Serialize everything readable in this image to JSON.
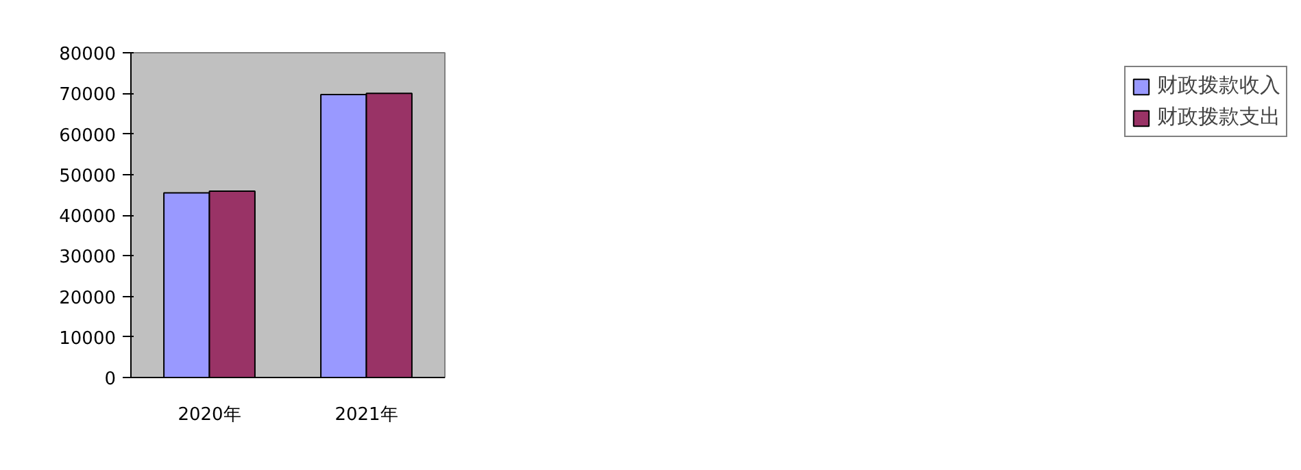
{
  "chart_data": {
    "type": "bar",
    "categories": [
      "2020年",
      "2021年"
    ],
    "series": [
      {
        "name": "财政拨款收入",
        "color": "#9999ff",
        "values": [
          45500,
          69700
        ]
      },
      {
        "name": "财政拨款支出",
        "color": "#993366",
        "values": [
          45900,
          70000
        ]
      }
    ],
    "ylim": [
      0,
      80000
    ],
    "yticks": [
      0,
      10000,
      20000,
      30000,
      40000,
      50000,
      60000,
      70000,
      80000
    ],
    "grid": false,
    "legend": "right"
  }
}
